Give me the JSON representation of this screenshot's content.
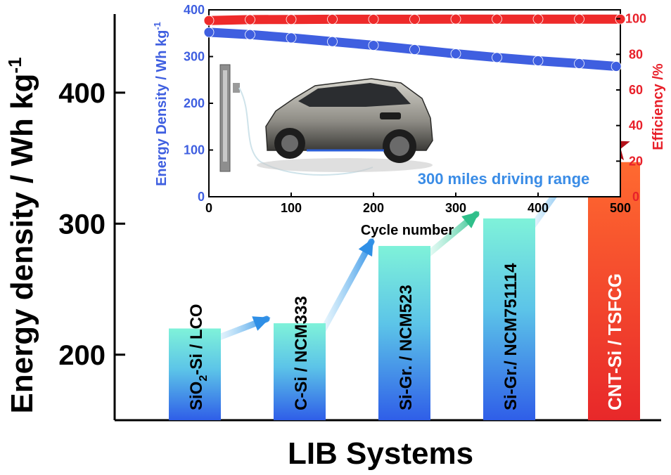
{
  "chart_data": [
    {
      "type": "bar",
      "categories": [
        "SiO2-Si / LCO",
        "C-Si / NCM333",
        "Si-Gr. / NCM523",
        "Si-Gr./ NCM751114",
        "CNT-Si / TSFCG"
      ],
      "category_labels": [
        {
          "parts": [
            {
              "t": "SiO"
            },
            {
              "t": "2",
              "sub": true
            },
            {
              "t": "-Si / LCO"
            }
          ]
        },
        {
          "parts": [
            {
              "t": "C-Si / NCM333"
            }
          ]
        },
        {
          "parts": [
            {
              "t": "Si-Gr. / NCM523"
            }
          ]
        },
        {
          "parts": [
            {
              "t": "Si-Gr./ NCM751114"
            }
          ]
        },
        {
          "parts": [
            {
              "t": "CNT-Si / TSFCG"
            }
          ]
        }
      ],
      "values": [
        220,
        224,
        283,
        304,
        347
      ],
      "xlabel": "LIB Systems",
      "ylabel": "Energy density / Wh kg",
      "ylabel_sup": "-1",
      "yticks": [
        200,
        300,
        400
      ],
      "ylim": [
        150,
        460
      ],
      "highlight_index": 4,
      "colors": {
        "bar_top": "#7ff2d9",
        "bar_bottom": "#2f5ee8",
        "highlight_top": "#ff5a2e",
        "highlight_bottom": "#e8282a",
        "star": "#b3111a",
        "arrow": "#3aa7ea"
      }
    },
    {
      "type": "line",
      "xlabel": "Cycle number",
      "xlim": [
        0,
        500
      ],
      "xticks": [
        0,
        100,
        200,
        300,
        400,
        500
      ],
      "y_left": {
        "label": "Energy Density / Wh kg",
        "label_sup": "-1",
        "lim": [
          0,
          400
        ],
        "ticks": [
          0,
          100,
          200,
          300,
          400
        ],
        "color": "#3f5fe0"
      },
      "y_right": {
        "label": "Efficiency /%",
        "lim": [
          0,
          105
        ],
        "ticks": [
          0,
          20,
          40,
          60,
          80,
          100
        ],
        "color": "#e8202a"
      },
      "series": [
        {
          "axis": "left",
          "x": [
            0,
            50,
            100,
            150,
            200,
            250,
            300,
            350,
            400,
            450,
            495
          ],
          "y": [
            352,
            347,
            340,
            332,
            324,
            315,
            306,
            298,
            291,
            285,
            279
          ],
          "color": "#3f5fe0"
        },
        {
          "axis": "right",
          "x": [
            0,
            50,
            100,
            150,
            200,
            250,
            300,
            350,
            400,
            450,
            500
          ],
          "y": [
            99,
            99.5,
            99.6,
            99.7,
            99.7,
            99.7,
            99.8,
            99.8,
            99.8,
            99.8,
            99.8
          ],
          "color": "#ee2a2a"
        }
      ],
      "annotation": "300 miles driving range",
      "annotation_color": "#3a8ce6"
    }
  ]
}
